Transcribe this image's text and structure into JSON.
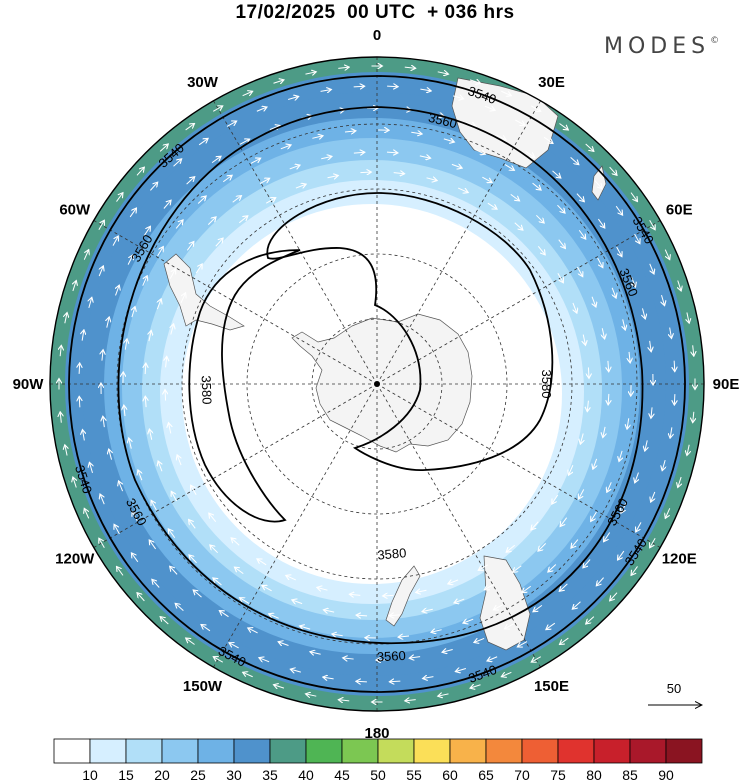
{
  "title": "17/02/2025  00 UTC  + 036 hrs",
  "brand": "MODES",
  "brand_mark": "©",
  "lon_labels": [
    {
      "text": "0",
      "lon": 0
    },
    {
      "text": "30E",
      "lon": 30
    },
    {
      "text": "60E",
      "lon": 60
    },
    {
      "text": "90E",
      "lon": 90
    },
    {
      "text": "120E",
      "lon": 120
    },
    {
      "text": "150E",
      "lon": 150
    },
    {
      "text": "180",
      "lon": 180
    },
    {
      "text": "150W",
      "lon": -150
    },
    {
      "text": "120W",
      "lon": -120
    },
    {
      "text": "90W",
      "lon": -90
    },
    {
      "text": "60W",
      "lon": -60
    },
    {
      "text": "30W",
      "lon": -30
    }
  ],
  "contour_labels": [
    {
      "text": "3540",
      "lon": 20
    },
    {
      "text": "3560",
      "lon": 14
    },
    {
      "text": "3540",
      "lon": 60
    },
    {
      "text": "3560",
      "lon": 68
    },
    {
      "text": "3580",
      "lon": 90
    },
    {
      "text": "3560",
      "lon": 118
    },
    {
      "text": "3540",
      "lon": 123
    },
    {
      "text": "3580",
      "lon": 175
    },
    {
      "text": "3560",
      "lon": 177
    },
    {
      "text": "3540",
      "lon": 160
    },
    {
      "text": "3540",
      "lon": -152
    },
    {
      "text": "3560",
      "lon": -118
    },
    {
      "text": "3540",
      "lon": -108
    },
    {
      "text": "3580",
      "lon": -92
    },
    {
      "text": "3560",
      "lon": -60
    },
    {
      "text": "3540",
      "lon": -42
    }
  ],
  "vector_reference": "50",
  "colorbar": {
    "ticks": [
      "10",
      "15",
      "20",
      "25",
      "30",
      "35",
      "40",
      "45",
      "50",
      "55",
      "60",
      "65",
      "70",
      "75",
      "80",
      "85",
      "90"
    ],
    "colors": [
      "#ffffff",
      "#d6efff",
      "#b1dff8",
      "#8cc8f0",
      "#6eb2e6",
      "#4f92cc",
      "#4d9b86",
      "#4fb554",
      "#7cc752",
      "#c4dc5b",
      "#fbdf58",
      "#f8b24a",
      "#f3883c",
      "#ee5f34",
      "#e0332e",
      "#c8202b",
      "#a9182a",
      "#8a1421"
    ]
  },
  "colors": {
    "land": "#f4f4f4",
    "contour": "#000000",
    "grid": "#333333"
  }
}
